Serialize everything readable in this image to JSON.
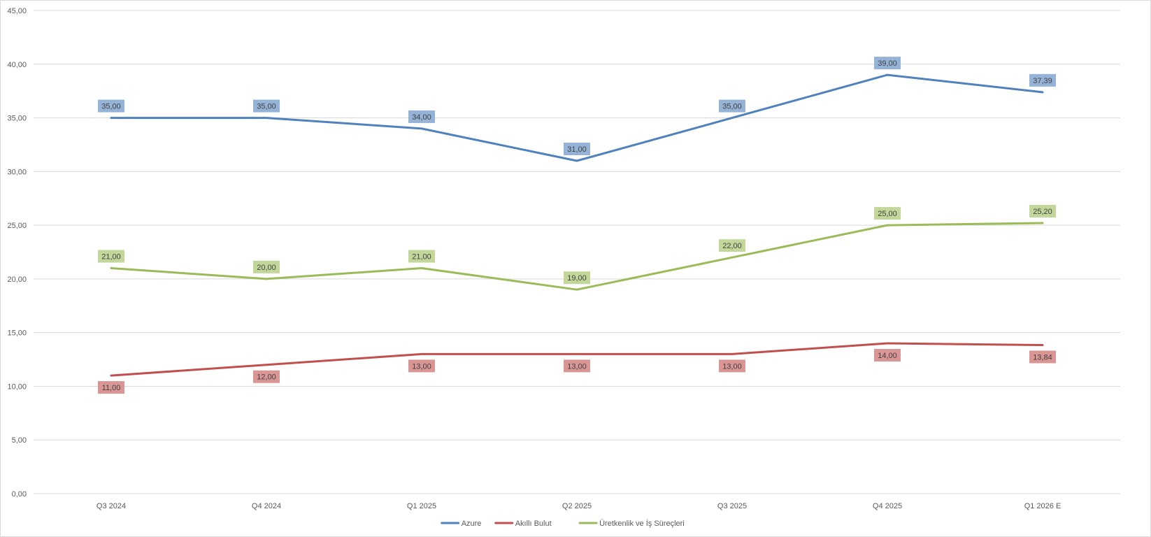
{
  "chart_data": {
    "type": "line",
    "title": "",
    "xlabel": "",
    "ylabel": "",
    "categories": [
      "Q3 2024",
      "Q4 2024",
      "Q1 2025",
      "Q2 2025",
      "Q3 2025",
      "Q4 2025",
      "Q1 2026 E"
    ],
    "ylim": [
      0,
      45
    ],
    "y_ticks": [
      "0,00",
      "5,00",
      "10,00",
      "15,00",
      "20,00",
      "25,00",
      "30,00",
      "35,00",
      "40,00",
      "45,00"
    ],
    "grid": "horizontal",
    "legend_position": "bottom",
    "series": [
      {
        "name": "Azure",
        "color": "#4f81bd",
        "label_color": "#95b3d7",
        "values": [
          35.0,
          35.0,
          34.0,
          31.0,
          35.0,
          39.0,
          37.39
        ],
        "labels": [
          "35,00",
          "35,00",
          "34,00",
          "31,00",
          "35,00",
          "39,00",
          "37,39"
        ],
        "label_position": "above"
      },
      {
        "name": "Akıllı Bulut",
        "color": "#c0504d",
        "label_color": "#da9694",
        "values": [
          11.0,
          12.0,
          13.0,
          13.0,
          13.0,
          14.0,
          13.84
        ],
        "labels": [
          "11,00",
          "12,00",
          "13,00",
          "13,00",
          "13,00",
          "14,00",
          "13,84"
        ],
        "label_position": "below"
      },
      {
        "name": "Üretkenlik ve İş Süreçleri",
        "color": "#9bbb59",
        "label_color": "#c4d79b",
        "values": [
          21.0,
          20.0,
          21.0,
          19.0,
          22.0,
          25.0,
          25.2
        ],
        "labels": [
          "21,00",
          "20,00",
          "21,00",
          "19,00",
          "22,00",
          "25,00",
          "25,20"
        ],
        "label_position": "above"
      }
    ]
  }
}
